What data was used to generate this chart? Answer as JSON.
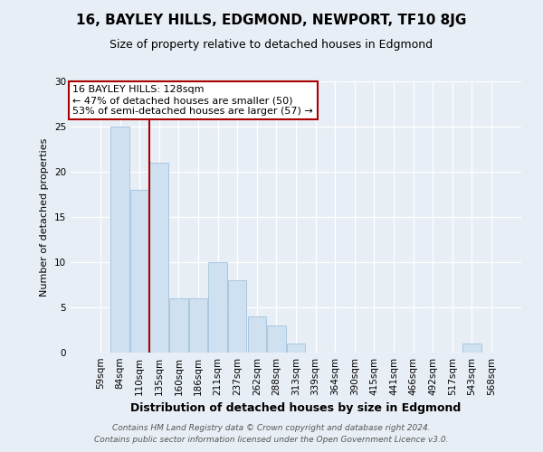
{
  "title": "16, BAYLEY HILLS, EDGMOND, NEWPORT, TF10 8JG",
  "subtitle": "Size of property relative to detached houses in Edgmond",
  "xlabel": "Distribution of detached houses by size in Edgmond",
  "ylabel": "Number of detached properties",
  "categories": [
    "59sqm",
    "84sqm",
    "110sqm",
    "135sqm",
    "160sqm",
    "186sqm",
    "211sqm",
    "237sqm",
    "262sqm",
    "288sqm",
    "313sqm",
    "339sqm",
    "364sqm",
    "390sqm",
    "415sqm",
    "441sqm",
    "466sqm",
    "492sqm",
    "517sqm",
    "543sqm",
    "568sqm"
  ],
  "values": [
    0,
    25,
    18,
    21,
    6,
    6,
    10,
    8,
    4,
    3,
    1,
    0,
    0,
    0,
    0,
    0,
    0,
    0,
    0,
    1,
    0
  ],
  "bar_color": "#cfe0f0",
  "bar_edge_color": "#aac8e0",
  "vline_x": 2.5,
  "vline_color": "#aa0000",
  "annotation_text": "16 BAYLEY HILLS: 128sqm\n← 47% of detached houses are smaller (50)\n53% of semi-detached houses are larger (57) →",
  "annotation_box_color": "#ffffff",
  "annotation_box_edge": "#aa0000",
  "ylim": [
    0,
    30
  ],
  "yticks": [
    0,
    5,
    10,
    15,
    20,
    25,
    30
  ],
  "footer_line1": "Contains HM Land Registry data © Crown copyright and database right 2024.",
  "footer_line2": "Contains public sector information licensed under the Open Government Licence v3.0.",
  "background_color": "#e8eef5",
  "title_fontsize": 11,
  "subtitle_fontsize": 9,
  "xlabel_fontsize": 9,
  "ylabel_fontsize": 8,
  "tick_fontsize": 7.5,
  "annot_fontsize": 8
}
